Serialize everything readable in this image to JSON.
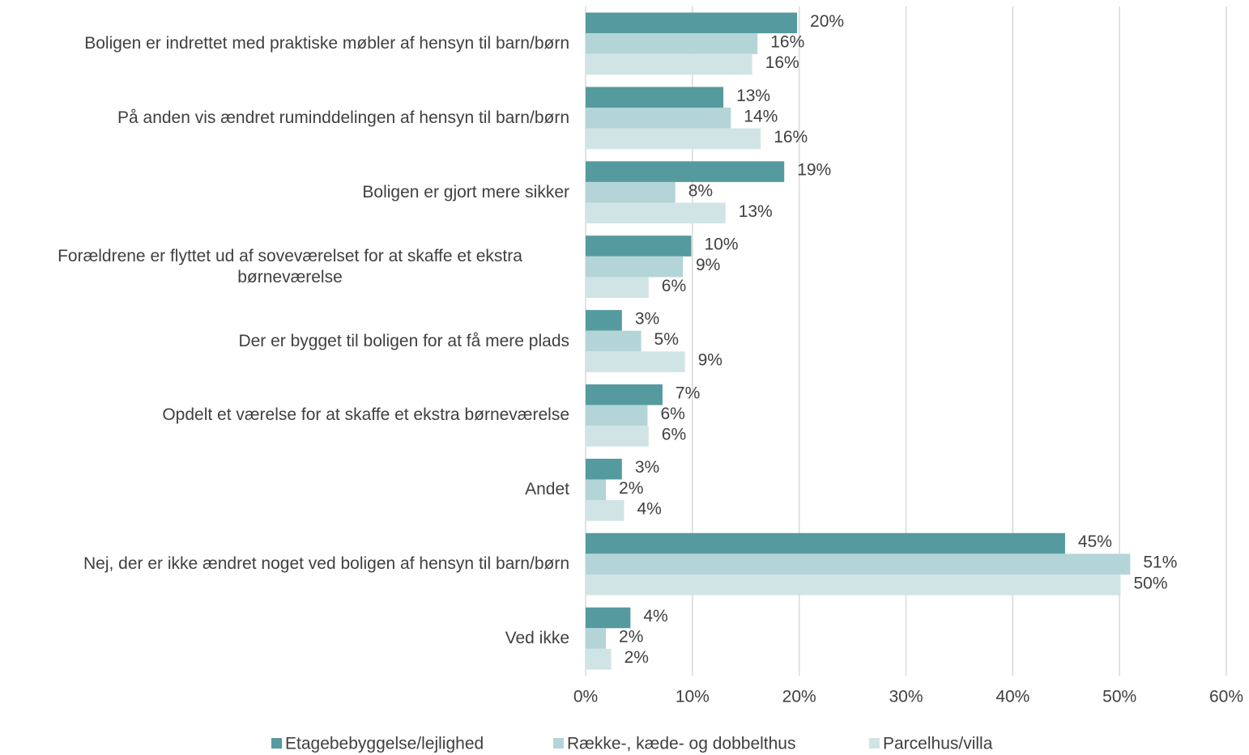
{
  "chart_data": {
    "type": "hbar",
    "categories": [
      "Boligen er indrettet med praktiske møbler af hensyn til barn/børn",
      "På anden vis ændret ruminddelingen af hensyn til barn/børn",
      "Boligen er gjort mere sikker",
      "Forældrene er flyttet ud af soveværelset for at skaffe et ekstra børneværelse",
      "Der er bygget til boligen for at få mere plads",
      "Opdelt et værelse for at skaffe et ekstra børneværelse",
      "Andet",
      "Nej, der er ikke ændret noget ved boligen af hensyn til barn/børn",
      "Ved ikke"
    ],
    "series": [
      {
        "name": "Etagebebyggelse/lejlighed",
        "color": "#559a9e",
        "values": [
          19.8,
          12.9,
          18.6,
          9.9,
          3.4,
          7.2,
          3.4,
          44.9,
          4.2
        ],
        "value_labels": [
          "20%",
          "13%",
          "19%",
          "10%",
          "3%",
          "7%",
          "3%",
          "45%",
          "4%"
        ]
      },
      {
        "name": "Række-, kæde- og dobbelthus",
        "color": "#b3d5d7",
        "values": [
          16.1,
          13.6,
          8.4,
          9.1,
          5.2,
          5.8,
          1.9,
          51.0,
          1.9
        ],
        "value_labels": [
          "16%",
          "14%",
          "8%",
          "9%",
          "5%",
          "6%",
          "2%",
          "51%",
          "2%"
        ]
      },
      {
        "name": "Parcelhus/villa",
        "color": "#d1e4e5",
        "values": [
          15.6,
          16.4,
          13.1,
          5.9,
          9.3,
          5.9,
          3.6,
          50.1,
          2.4
        ],
        "value_labels": [
          "16%",
          "16%",
          "13%",
          "6%",
          "9%",
          "6%",
          "4%",
          "50%",
          "2%"
        ]
      }
    ],
    "xlim": [
      0,
      60
    ],
    "xticks": [
      {
        "value": 0,
        "label": "0%"
      },
      {
        "value": 10,
        "label": "10%"
      },
      {
        "value": 20,
        "label": "20%"
      },
      {
        "value": 30,
        "label": "30%"
      },
      {
        "value": 40,
        "label": "40%"
      },
      {
        "value": 50,
        "label": "50%"
      },
      {
        "value": 60,
        "label": "60%"
      }
    ],
    "grid": true,
    "legend": "bottom"
  }
}
